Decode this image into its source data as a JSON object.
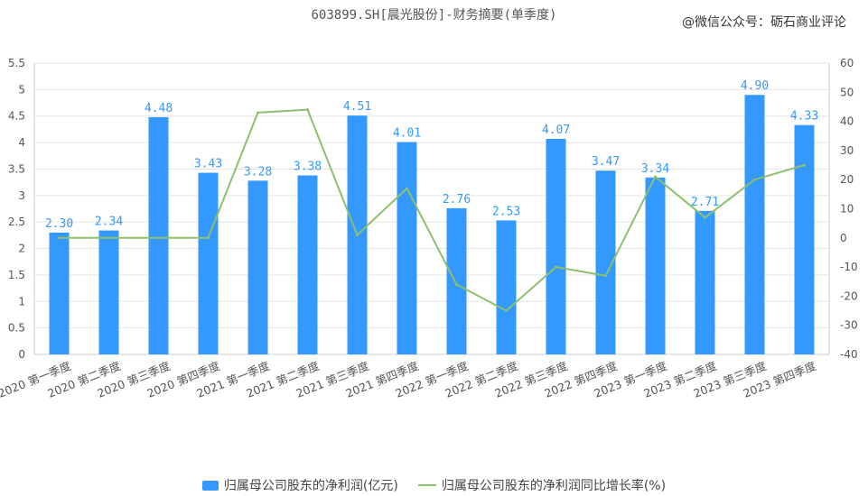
{
  "title": "603899.SH[晨光股份]-财务摘要(单季度)",
  "watermark": "@微信公众号：砺石商业评论",
  "colors": {
    "bar": "#3399ff",
    "line": "#8dbf6e",
    "grid": "#e6e6e6",
    "axis": "#cccccc",
    "text": "#555555",
    "label": "#3399ff"
  },
  "chart_data": {
    "type": "bar",
    "categories": [
      "2020 第一季度",
      "2020 第二季度",
      "2020 第三季度",
      "2020 第四季度",
      "2021 第一季度",
      "2021 第二季度",
      "2021 第三季度",
      "2021 第四季度",
      "2022 第一季度",
      "2022 第二季度",
      "2022 第三季度",
      "2022 第四季度",
      "2023 第一季度",
      "2023 第二季度",
      "2023 第三季度",
      "2023 第四季度"
    ],
    "series": [
      {
        "name": "归属母公司股东的净利润(亿元)",
        "type": "bar",
        "axis": "left",
        "values": [
          2.3,
          2.34,
          4.48,
          3.43,
          3.28,
          3.38,
          4.51,
          4.01,
          2.76,
          2.53,
          4.07,
          3.47,
          3.34,
          2.71,
          4.9,
          4.33
        ],
        "labels": [
          "2.30",
          "2.34",
          "4.48",
          "3.43",
          "3.28",
          "3.38",
          "4.51",
          "4.01",
          "2.76",
          "2.53",
          "4.07",
          "3.47",
          "3.34",
          "2.71",
          "4.90",
          "4.33"
        ]
      },
      {
        "name": "归属母公司股东的净利润同比增长率(%)",
        "type": "line",
        "axis": "right",
        "values": [
          0,
          0,
          0,
          0,
          43,
          44,
          1,
          17,
          -16,
          -25,
          -10,
          -13,
          21,
          7,
          20,
          25
        ]
      }
    ],
    "ylim_left": [
      0,
      5.5
    ],
    "yticks_left": [
      "0",
      "0.5",
      "1",
      "1.5",
      "2",
      "2.5",
      "3",
      "3.5",
      "4",
      "4.5",
      "5",
      "5.5"
    ],
    "ylim_right": [
      -40,
      60
    ],
    "yticks_right": [
      "-40",
      "-30",
      "-20",
      "-10",
      "0",
      "10",
      "20",
      "30",
      "40",
      "50",
      "60"
    ],
    "grid": true,
    "legend_position": "bottom"
  }
}
